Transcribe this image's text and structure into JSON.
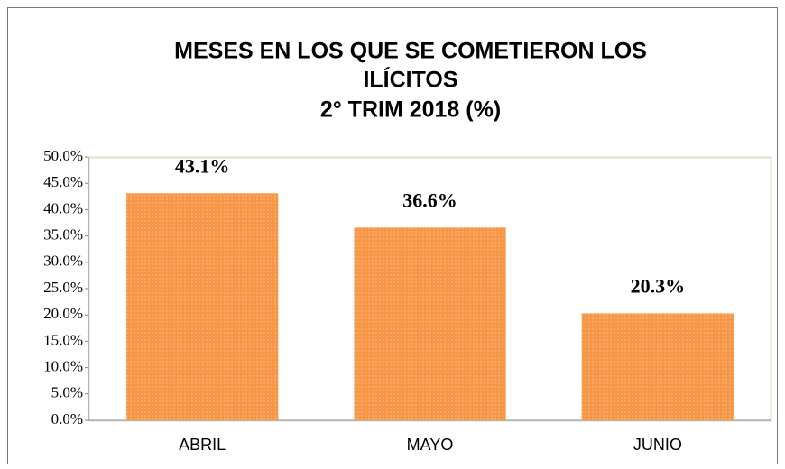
{
  "chart_data": {
    "type": "bar",
    "title": [
      "MESES EN LOS QUE SE COMETIERON LOS",
      "ILÍCITOS",
      "2° TRIM 2018 (%)"
    ],
    "categories": [
      "ABRIL",
      "MAYO",
      "JUNIO"
    ],
    "values": [
      43.1,
      36.6,
      20.3
    ],
    "value_labels": [
      "43.1%",
      "36.6%",
      "20.3%"
    ],
    "color": "#f79646",
    "ylim": [
      0,
      50
    ],
    "yticks": [
      {
        "value": 0,
        "label": "0.0%"
      },
      {
        "value": 5,
        "label": "5.0%"
      },
      {
        "value": 10,
        "label": "10.0%"
      },
      {
        "value": 15,
        "label": "15.0%"
      },
      {
        "value": 20,
        "label": "20.0%"
      },
      {
        "value": 25,
        "label": "25.0%"
      },
      {
        "value": 30,
        "label": "30.0%"
      },
      {
        "value": 35,
        "label": "35.0%"
      },
      {
        "value": 40,
        "label": "40.0%"
      },
      {
        "value": 45,
        "label": "45.0%"
      },
      {
        "value": 50,
        "label": "50.0%"
      }
    ],
    "grid": false
  }
}
